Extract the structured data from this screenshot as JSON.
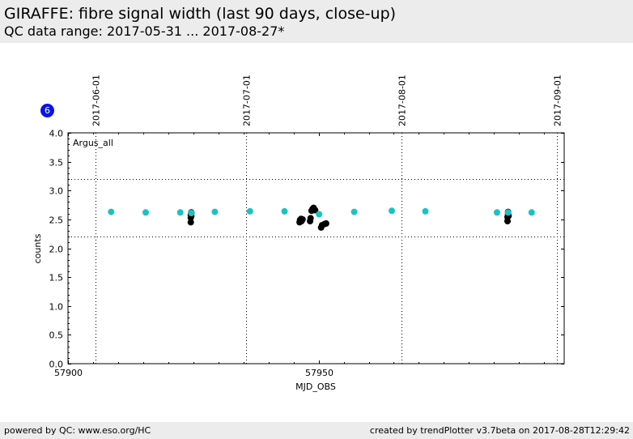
{
  "header": {
    "title": "GIRAFFE: fibre signal width (last 90 days, close-up)",
    "subtitle": "QC data range: 2017-05-31 ... 2017-08-27*"
  },
  "badge": {
    "text": "6"
  },
  "footer": {
    "left": "powered by QC: www.eso.org/HC",
    "right": "created by trendPlotter v3.7beta on 2017-08-28T12:29:42"
  },
  "colors": {
    "series_cyan": "#18c3c3",
    "series_black": "#000000",
    "badge": "#0a14e6"
  },
  "chart_data": {
    "type": "scatter",
    "xlabel": "MJD_OBS",
    "ylabel": "counts",
    "panel_label": "Argus_all",
    "xlim": [
      57900,
      57999
    ],
    "ylim": [
      0.0,
      4.0
    ],
    "x_ticks": [
      57900,
      57950
    ],
    "y_ticks": [
      0.0,
      0.5,
      1.0,
      1.5,
      2.0,
      2.5,
      3.0,
      3.5,
      4.0
    ],
    "y_tick_labels": [
      "0.0",
      "0.5",
      "1.0",
      "1.5",
      "2.0",
      "2.5",
      "3.0",
      "3.5",
      "4.0"
    ],
    "x_tick_labels": [
      "57900",
      "57950"
    ],
    "date_markers": [
      {
        "x": 57905.5,
        "label": "2017-06-01"
      },
      {
        "x": 57935.5,
        "label": "2017-07-01"
      },
      {
        "x": 57966.5,
        "label": "2017-08-01"
      },
      {
        "x": 57997.5,
        "label": "2017-09-01"
      }
    ],
    "thresholds": [
      3.2,
      2.2
    ],
    "series": [
      {
        "color": "#000000",
        "x": [
          57924.5,
          57924.5,
          57924.5,
          57924.6,
          57924.6,
          57924.6,
          57946.2,
          57946.3,
          57946.5,
          57946.6,
          57946.8,
          57948.3,
          57948.4,
          57948.6,
          57948.8,
          57949.0,
          57949.3,
          57950.5,
          57950.7,
          57951.2,
          57951.5,
          57987.7,
          57987.7,
          57987.8,
          57987.8,
          57987.9
        ],
        "y": [
          2.45,
          2.53,
          2.58,
          2.6,
          2.62,
          2.56,
          2.45,
          2.49,
          2.51,
          2.47,
          2.5,
          2.47,
          2.52,
          2.65,
          2.68,
          2.7,
          2.66,
          2.36,
          2.4,
          2.42,
          2.43,
          2.47,
          2.54,
          2.59,
          2.63,
          2.56
        ]
      },
      {
        "color": "#18c3c3",
        "x": [
          57908.6,
          57915.5,
          57922.4,
          57924.6,
          57929.3,
          57936.3,
          57943.2,
          57950.1,
          57957.1,
          57964.6,
          57971.3,
          57985.6,
          57987.8,
          57992.5
        ],
        "y": [
          2.63,
          2.62,
          2.62,
          2.61,
          2.63,
          2.64,
          2.64,
          2.59,
          2.63,
          2.65,
          2.64,
          2.62,
          2.62,
          2.62
        ]
      }
    ]
  }
}
